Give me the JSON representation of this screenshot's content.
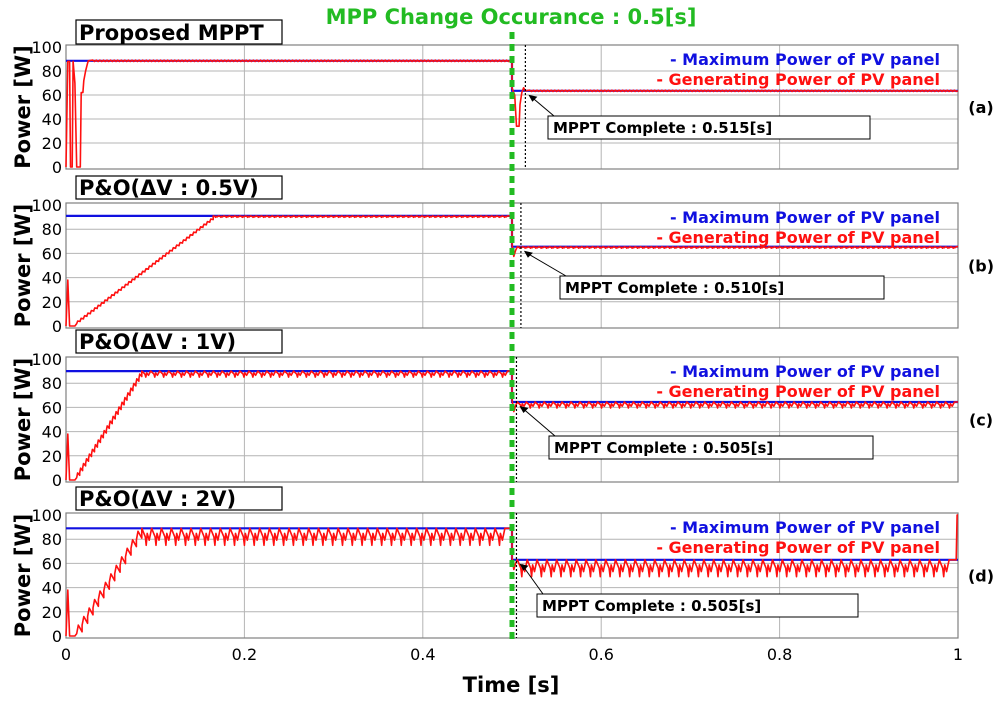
{
  "figure": {
    "top_annotation": "MPP Change Occurance : 0.5[s]",
    "xlabel": "Time [s]",
    "x_ticks": [
      "0",
      "0.2",
      "0.4",
      "0.6",
      "0.8",
      "1"
    ],
    "colors": {
      "annotation": "#22bb22",
      "max_power": "#1010e0",
      "gen_power": "#ff1010",
      "grid": "#b4b4b4",
      "frame": "#808080"
    }
  },
  "chart_data": [
    {
      "type": "line",
      "title": "Proposed MPPT",
      "panel_label": "(a)",
      "ylabel": "Power [W]",
      "y_ticks": [
        "100",
        "80",
        "60",
        "40",
        "20",
        "0"
      ],
      "xlim": [
        0,
        1
      ],
      "ylim": [
        0,
        100
      ],
      "legend": [
        "- Maximum Power of PV panel",
        "- Generating Power of PV panel"
      ],
      "legend_position": "top-right",
      "mpp_change_time": 0.5,
      "mppt_complete_time": 0.515,
      "mppt_complete_label": "MPPT Complete : 0.515[s]",
      "series": [
        {
          "name": "Maximum Power of PV panel",
          "x": [
            0,
            0.5,
            0.5,
            1
          ],
          "y": [
            88.5,
            88.5,
            63.5,
            63.5
          ]
        },
        {
          "name": "Generating Power of PV panel",
          "tracking": "proposed",
          "pre_level": 88.5,
          "post_level": 63.5,
          "settle_time_start": 0.025
        }
      ]
    },
    {
      "type": "line",
      "title": "P&O(ΔV : 0.5V)",
      "panel_label": "(b)",
      "ylabel": "Power [W]",
      "y_ticks": [
        "100",
        "80",
        "60",
        "40",
        "20",
        "0"
      ],
      "xlim": [
        0,
        1
      ],
      "ylim": [
        0,
        100
      ],
      "legend": [
        "- Maximum Power of PV panel",
        "- Generating Power of PV panel"
      ],
      "legend_position": "top-right",
      "mpp_change_time": 0.5,
      "mppt_complete_time": 0.51,
      "mppt_complete_label": "MPPT Complete : 0.510[s]",
      "series": [
        {
          "name": "Maximum Power of PV panel",
          "x": [
            0,
            0.5,
            0.5,
            1
          ],
          "y": [
            91,
            91,
            65.5,
            65.5
          ]
        },
        {
          "name": "Generating Power of PV panel",
          "tracking": "po",
          "delta_v": 0.5,
          "ramp_end_time": 0.165,
          "ripple": 1.2,
          "pre_level": 91,
          "post_level": 65.5
        }
      ]
    },
    {
      "type": "line",
      "title": "P&O(ΔV : 1V)",
      "panel_label": "(c)",
      "ylabel": "Power [W]",
      "y_ticks": [
        "100",
        "80",
        "60",
        "40",
        "20",
        "0"
      ],
      "xlim": [
        0,
        1
      ],
      "ylim": [
        0,
        100
      ],
      "legend": [
        "- Maximum Power of PV panel",
        "- Generating Power of PV panel"
      ],
      "legend_position": "top-right",
      "mpp_change_time": 0.5,
      "mppt_complete_time": 0.505,
      "mppt_complete_label": "MPPT Complete : 0.505[s]",
      "series": [
        {
          "name": "Maximum Power of PV panel",
          "x": [
            0,
            0.5,
            0.5,
            1
          ],
          "y": [
            90,
            90,
            64.5,
            64.5
          ]
        },
        {
          "name": "Generating Power of PV panel",
          "tracking": "po",
          "delta_v": 1,
          "ramp_end_time": 0.085,
          "ripple": 5,
          "pre_level": 90,
          "post_level": 64.5
        }
      ]
    },
    {
      "type": "line",
      "title": "P&O(ΔV : 2V)",
      "panel_label": "(d)",
      "ylabel": "Power [W]",
      "y_ticks": [
        "100",
        "80",
        "60",
        "40",
        "20",
        "0"
      ],
      "xlim": [
        0,
        1
      ],
      "ylim": [
        0,
        100
      ],
      "legend": [
        "- Maximum Power of PV panel",
        "- Generating Power of PV panel"
      ],
      "legend_position": "top-right",
      "mpp_change_time": 0.5,
      "mppt_complete_time": 0.505,
      "mppt_complete_label": "MPPT Complete : 0.505[s]",
      "series": [
        {
          "name": "Maximum Power of PV panel",
          "x": [
            0,
            0.5,
            0.5,
            1
          ],
          "y": [
            89,
            89,
            63,
            63
          ]
        },
        {
          "name": "Generating Power of PV panel",
          "tracking": "po",
          "delta_v": 2,
          "ramp_end_time": 0.085,
          "ripple": 14,
          "pre_level": 89,
          "post_level": 63
        }
      ]
    }
  ]
}
